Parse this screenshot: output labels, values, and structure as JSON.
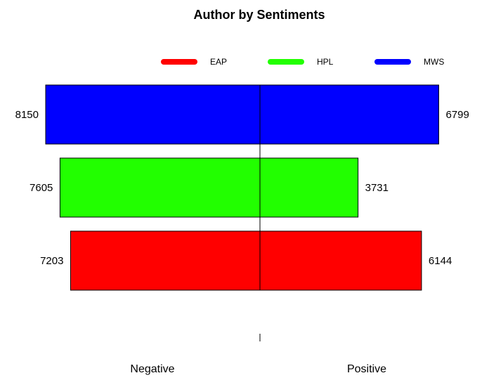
{
  "chart_data": {
    "type": "bar",
    "orientation": "horizontal-diverging",
    "title": "Author by Sentiments",
    "categories": [
      "EAP",
      "HPL",
      "MWS"
    ],
    "series": [
      {
        "name": "Negative",
        "values": [
          7203,
          7605,
          8150
        ]
      },
      {
        "name": "Positive",
        "values": [
          6144,
          3731,
          6799
        ]
      }
    ],
    "colors": {
      "EAP": "#ff0000",
      "HPL": "#22ff00",
      "MWS": "#0000ff"
    },
    "legend": {
      "placement": "top",
      "items": [
        {
          "label": "EAP",
          "color": "#ff0000"
        },
        {
          "label": "HPL",
          "color": "#22ff00"
        },
        {
          "label": "MWS",
          "color": "#0000ff"
        }
      ]
    },
    "xlim": [
      -8500,
      8500
    ],
    "axis_labels": {
      "left": "Negative",
      "right": "Positive"
    },
    "grid": false
  }
}
